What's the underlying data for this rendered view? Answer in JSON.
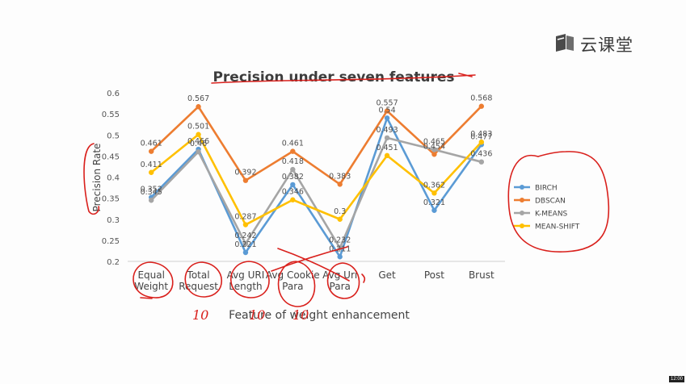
{
  "watermark": {
    "icon": "cloud-classroom-logo-icon",
    "text": "云课堂"
  },
  "corner_badge": "12:00",
  "chart_data": {
    "type": "line",
    "title": "Precision under seven features",
    "xlabel": "Feature of weight enhancement",
    "ylabel": "Precision Rate",
    "categories": [
      "Equal Weight",
      "Total Request",
      "Avg URI Length",
      "Avg Cookie Para",
      "Avg Uri Para",
      "Get",
      "Post",
      "Brust"
    ],
    "ylim": [
      0.2,
      0.6
    ],
    "yticks": [
      "0.2",
      "0.25",
      "0.3",
      "0.35",
      "0.4",
      "0.45",
      "0.5",
      "0.55",
      "0.6"
    ],
    "grid": false,
    "legend_position": "right",
    "series": [
      {
        "name": "BIRCH",
        "color": "#5b9bd5",
        "values": [
          0.352,
          0.466,
          0.221,
          0.382,
          0.211,
          0.54,
          0.321,
          0.477
        ],
        "labels": [
          "0.352",
          "0.466",
          "0.221",
          "0.382",
          "0.211",
          "0.54",
          "0.321",
          "0.477"
        ]
      },
      {
        "name": "DBSCAN",
        "color": "#ed7d31",
        "values": [
          0.461,
          0.567,
          0.392,
          0.461,
          0.383,
          0.557,
          0.454,
          0.568
        ],
        "labels": [
          "0.461",
          "0.567",
          "0.392",
          "0.461",
          "0.383",
          "0.557",
          "0.454",
          "0.568"
        ]
      },
      {
        "name": "K-MEANS",
        "color": "#a5a5a5",
        "values": [
          0.345,
          0.46,
          0.242,
          0.418,
          0.232,
          0.493,
          0.465,
          0.436
        ],
        "labels": [
          "0.345",
          "0.46",
          "0.242",
          "0.418",
          "0.232",
          "0.493",
          "0.465",
          "0.436"
        ]
      },
      {
        "name": "MEAN-SHIFT",
        "color": "#ffc000",
        "values": [
          0.411,
          0.501,
          0.287,
          0.346,
          0.3,
          0.451,
          0.362,
          0.483
        ],
        "labels": [
          "0.411",
          "0.501",
          "0.287",
          "0.346",
          "0.3",
          "0.451",
          "0.362",
          "0.483"
        ]
      }
    ],
    "annotations": {
      "handwritten_numbers": [
        "10",
        "10",
        "10"
      ],
      "ink_color": "#d9201c"
    }
  }
}
